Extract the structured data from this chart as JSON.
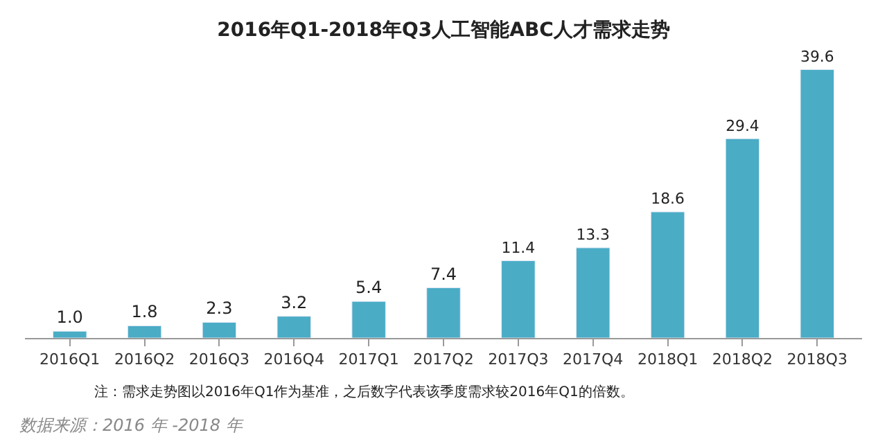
{
  "chart_data": {
    "type": "bar",
    "title": "2016年Q1-2018年Q3人工智能ABC人才需求走势",
    "categories": [
      "2016Q1",
      "2016Q2",
      "2016Q3",
      "2016Q4",
      "2017Q1",
      "2017Q2",
      "2017Q3",
      "2017Q4",
      "2018Q1",
      "2018Q2",
      "2018Q3"
    ],
    "values": [
      1.0,
      1.8,
      2.3,
      3.2,
      5.4,
      7.4,
      11.4,
      13.3,
      18.6,
      29.4,
      39.6
    ],
    "value_labels": [
      "1.0",
      "1.8",
      "2.3",
      "3.2",
      "5.4",
      "7.4",
      "11.4",
      "13.3",
      "18.6",
      "29.4",
      "39.6"
    ],
    "color": "#4bacc6",
    "tick_labels": "x",
    "annotations": [
      "注：需求走势图以2016年Q1作为基准，之后数字代表该季度需求较2016年Q1的倍数。",
      "数据来源：2016 年 -2018 年"
    ]
  }
}
